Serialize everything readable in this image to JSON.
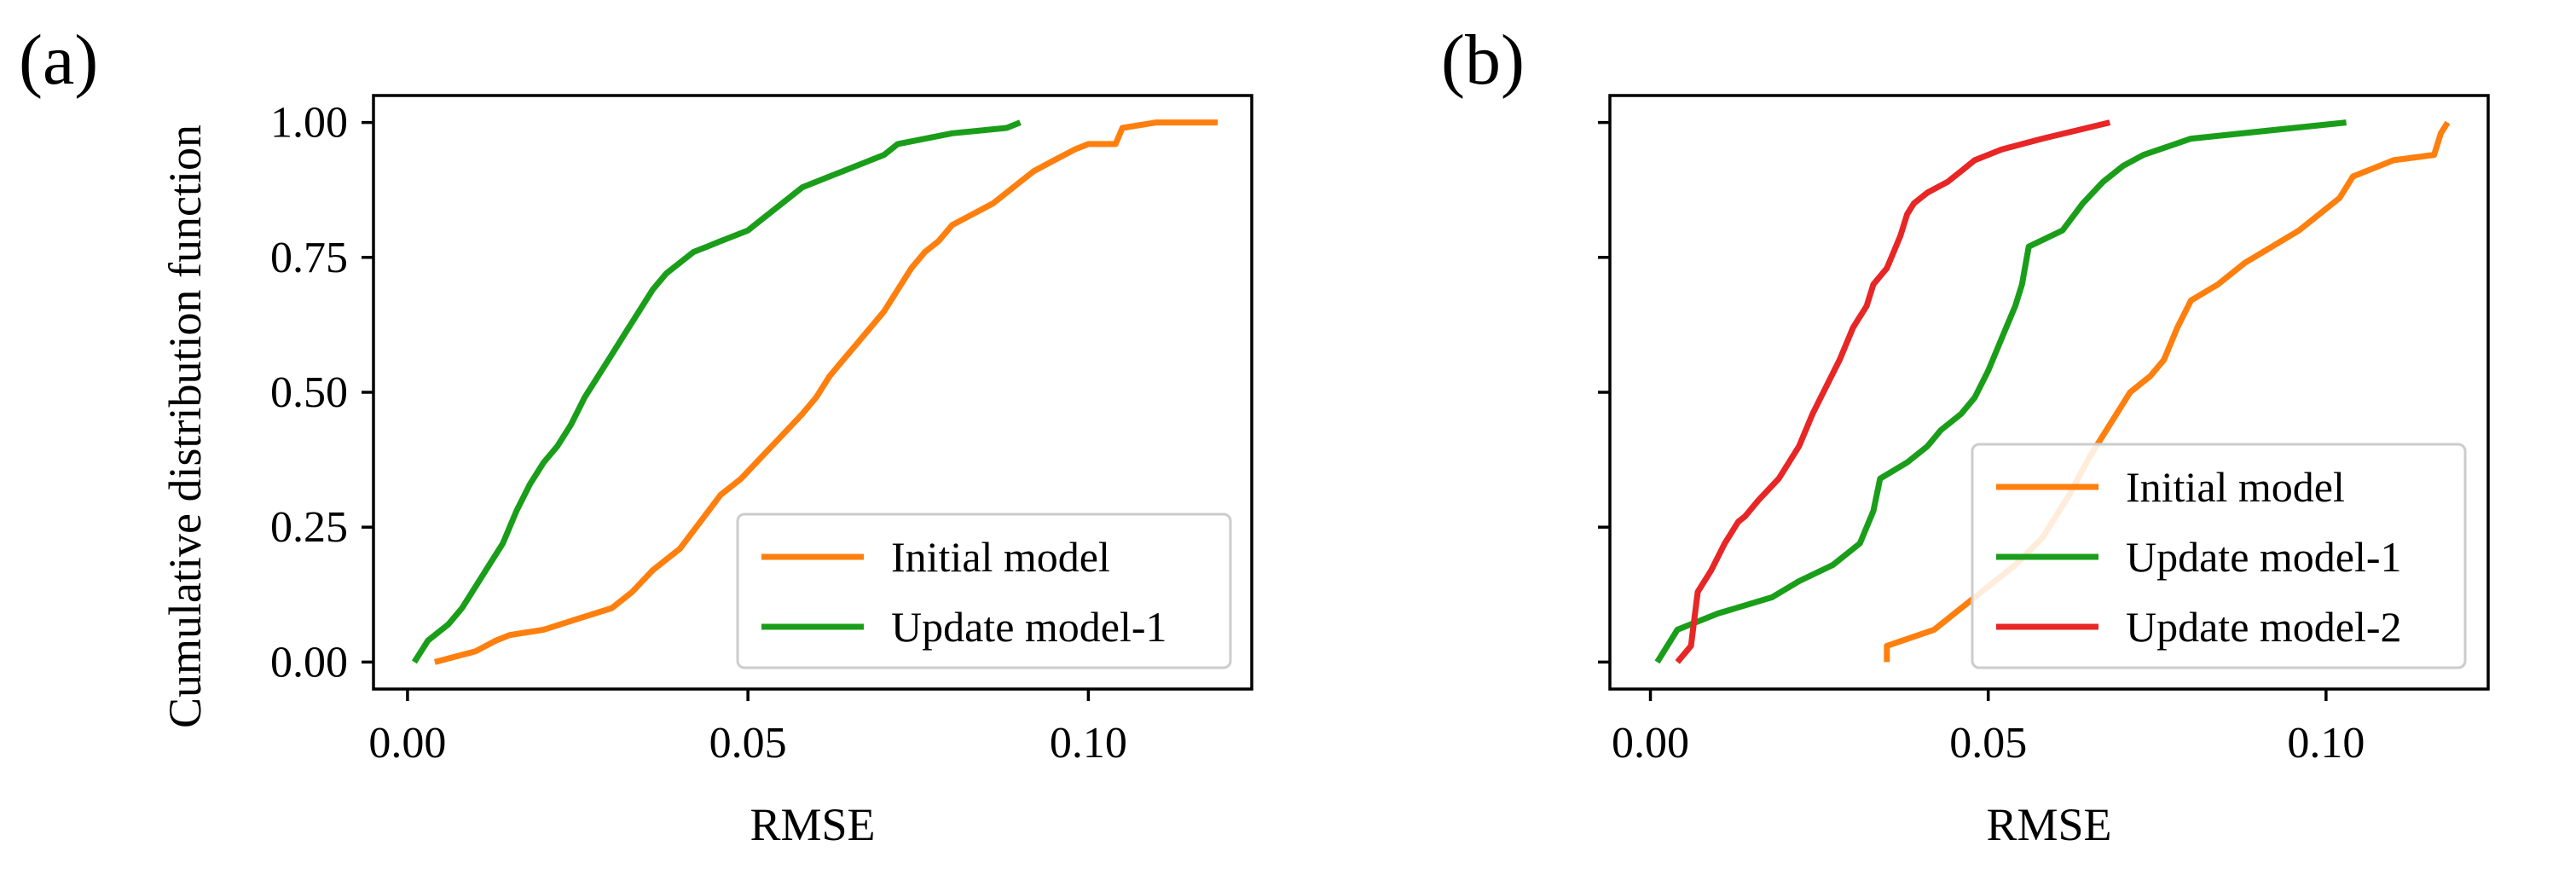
{
  "colors": {
    "initial": "#ff7f0e",
    "update1": "#1a9e1a",
    "update2": "#e82626",
    "axis": "#000000"
  },
  "chart_data": [
    {
      "panel_label": "(a)",
      "type": "line",
      "title": "",
      "xlabel": "RMSE",
      "ylabel": "Cumulative distribution function",
      "xlim": [
        -0.005,
        0.124
      ],
      "ylim": [
        -0.05,
        1.05
      ],
      "xticks": [
        0.0,
        0.05,
        0.1
      ],
      "xtick_labels": [
        "0.00",
        "0.05",
        "0.10"
      ],
      "yticks": [
        0.0,
        0.25,
        0.5,
        0.75,
        1.0
      ],
      "ytick_labels": [
        "0.00",
        "0.25",
        "0.50",
        "0.75",
        "1.00"
      ],
      "legend_position": "lower-right",
      "series": [
        {
          "name": "Initial model",
          "color_key": "initial",
          "x": [
            0.004,
            0.01,
            0.013,
            0.015,
            0.02,
            0.025,
            0.03,
            0.033,
            0.036,
            0.04,
            0.043,
            0.046,
            0.049,
            0.052,
            0.055,
            0.058,
            0.06,
            0.062,
            0.064,
            0.066,
            0.068,
            0.07,
            0.072,
            0.074,
            0.076,
            0.078,
            0.08,
            0.083,
            0.086,
            0.088,
            0.09,
            0.092,
            0.095,
            0.098,
            0.1,
            0.104,
            0.105,
            0.11,
            0.119
          ],
          "y": [
            0.0,
            0.02,
            0.04,
            0.05,
            0.06,
            0.08,
            0.1,
            0.13,
            0.17,
            0.21,
            0.26,
            0.31,
            0.34,
            0.38,
            0.42,
            0.46,
            0.49,
            0.53,
            0.56,
            0.59,
            0.62,
            0.65,
            0.69,
            0.73,
            0.76,
            0.78,
            0.81,
            0.83,
            0.85,
            0.87,
            0.89,
            0.91,
            0.93,
            0.95,
            0.96,
            0.96,
            0.99,
            1.0,
            1.0
          ]
        },
        {
          "name": "Update model-1",
          "color_key": "update1",
          "x": [
            0.001,
            0.003,
            0.006,
            0.008,
            0.01,
            0.012,
            0.014,
            0.016,
            0.018,
            0.02,
            0.022,
            0.024,
            0.026,
            0.028,
            0.03,
            0.032,
            0.034,
            0.036,
            0.038,
            0.04,
            0.042,
            0.044,
            0.046,
            0.048,
            0.05,
            0.052,
            0.054,
            0.056,
            0.058,
            0.06,
            0.062,
            0.064,
            0.066,
            0.068,
            0.07,
            0.072,
            0.08,
            0.088,
            0.09
          ],
          "y": [
            0.0,
            0.04,
            0.07,
            0.1,
            0.14,
            0.18,
            0.22,
            0.28,
            0.33,
            0.37,
            0.4,
            0.44,
            0.49,
            0.53,
            0.57,
            0.61,
            0.65,
            0.69,
            0.72,
            0.74,
            0.76,
            0.77,
            0.78,
            0.79,
            0.8,
            0.82,
            0.84,
            0.86,
            0.88,
            0.89,
            0.9,
            0.91,
            0.92,
            0.93,
            0.94,
            0.96,
            0.98,
            0.99,
            1.0
          ]
        }
      ]
    },
    {
      "panel_label": "(b)",
      "type": "line",
      "title": "",
      "xlabel": "RMSE",
      "ylabel": "",
      "xlim": [
        -0.006,
        0.124
      ],
      "ylim": [
        -0.05,
        1.05
      ],
      "xticks": [
        0.0,
        0.05,
        0.1
      ],
      "xtick_labels": [
        "0.00",
        "0.05",
        "0.10"
      ],
      "yticks": [
        0.0,
        0.25,
        0.5,
        0.75,
        1.0
      ],
      "ytick_labels": [
        "",
        "",
        "",
        "",
        ""
      ],
      "legend_position": "lower-right",
      "series": [
        {
          "name": "Initial model",
          "color_key": "initial",
          "x": [
            0.035,
            0.035,
            0.042,
            0.046,
            0.05,
            0.054,
            0.058,
            0.062,
            0.065,
            0.068,
            0.071,
            0.074,
            0.076,
            0.078,
            0.08,
            0.084,
            0.088,
            0.092,
            0.096,
            0.1,
            0.102,
            0.104,
            0.11,
            0.116,
            0.117,
            0.118
          ],
          "y": [
            0.0,
            0.03,
            0.06,
            0.1,
            0.14,
            0.18,
            0.23,
            0.31,
            0.38,
            0.44,
            0.5,
            0.53,
            0.56,
            0.62,
            0.67,
            0.7,
            0.74,
            0.77,
            0.8,
            0.84,
            0.86,
            0.9,
            0.93,
            0.94,
            0.98,
            1.0
          ]
        },
        {
          "name": "Update model-1",
          "color_key": "update1",
          "x": [
            0.001,
            0.004,
            0.01,
            0.018,
            0.022,
            0.027,
            0.031,
            0.033,
            0.034,
            0.038,
            0.041,
            0.043,
            0.046,
            0.048,
            0.05,
            0.052,
            0.054,
            0.055,
            0.056,
            0.061,
            0.064,
            0.067,
            0.07,
            0.073,
            0.08,
            0.103
          ],
          "y": [
            0.0,
            0.06,
            0.09,
            0.12,
            0.15,
            0.18,
            0.22,
            0.28,
            0.34,
            0.37,
            0.4,
            0.43,
            0.46,
            0.49,
            0.54,
            0.6,
            0.66,
            0.7,
            0.77,
            0.8,
            0.85,
            0.89,
            0.92,
            0.94,
            0.97,
            1.0
          ]
        },
        {
          "name": "Update model-2",
          "color_key": "update2",
          "x": [
            0.004,
            0.006,
            0.007,
            0.009,
            0.011,
            0.013,
            0.014,
            0.016,
            0.019,
            0.022,
            0.024,
            0.026,
            0.028,
            0.03,
            0.032,
            0.033,
            0.035,
            0.036,
            0.037,
            0.038,
            0.039,
            0.041,
            0.044,
            0.046,
            0.048,
            0.052,
            0.058,
            0.068
          ],
          "y": [
            0.0,
            0.03,
            0.13,
            0.17,
            0.22,
            0.26,
            0.27,
            0.3,
            0.34,
            0.4,
            0.46,
            0.51,
            0.56,
            0.62,
            0.66,
            0.7,
            0.73,
            0.76,
            0.79,
            0.83,
            0.85,
            0.87,
            0.89,
            0.91,
            0.93,
            0.95,
            0.97,
            1.0
          ]
        }
      ]
    }
  ]
}
